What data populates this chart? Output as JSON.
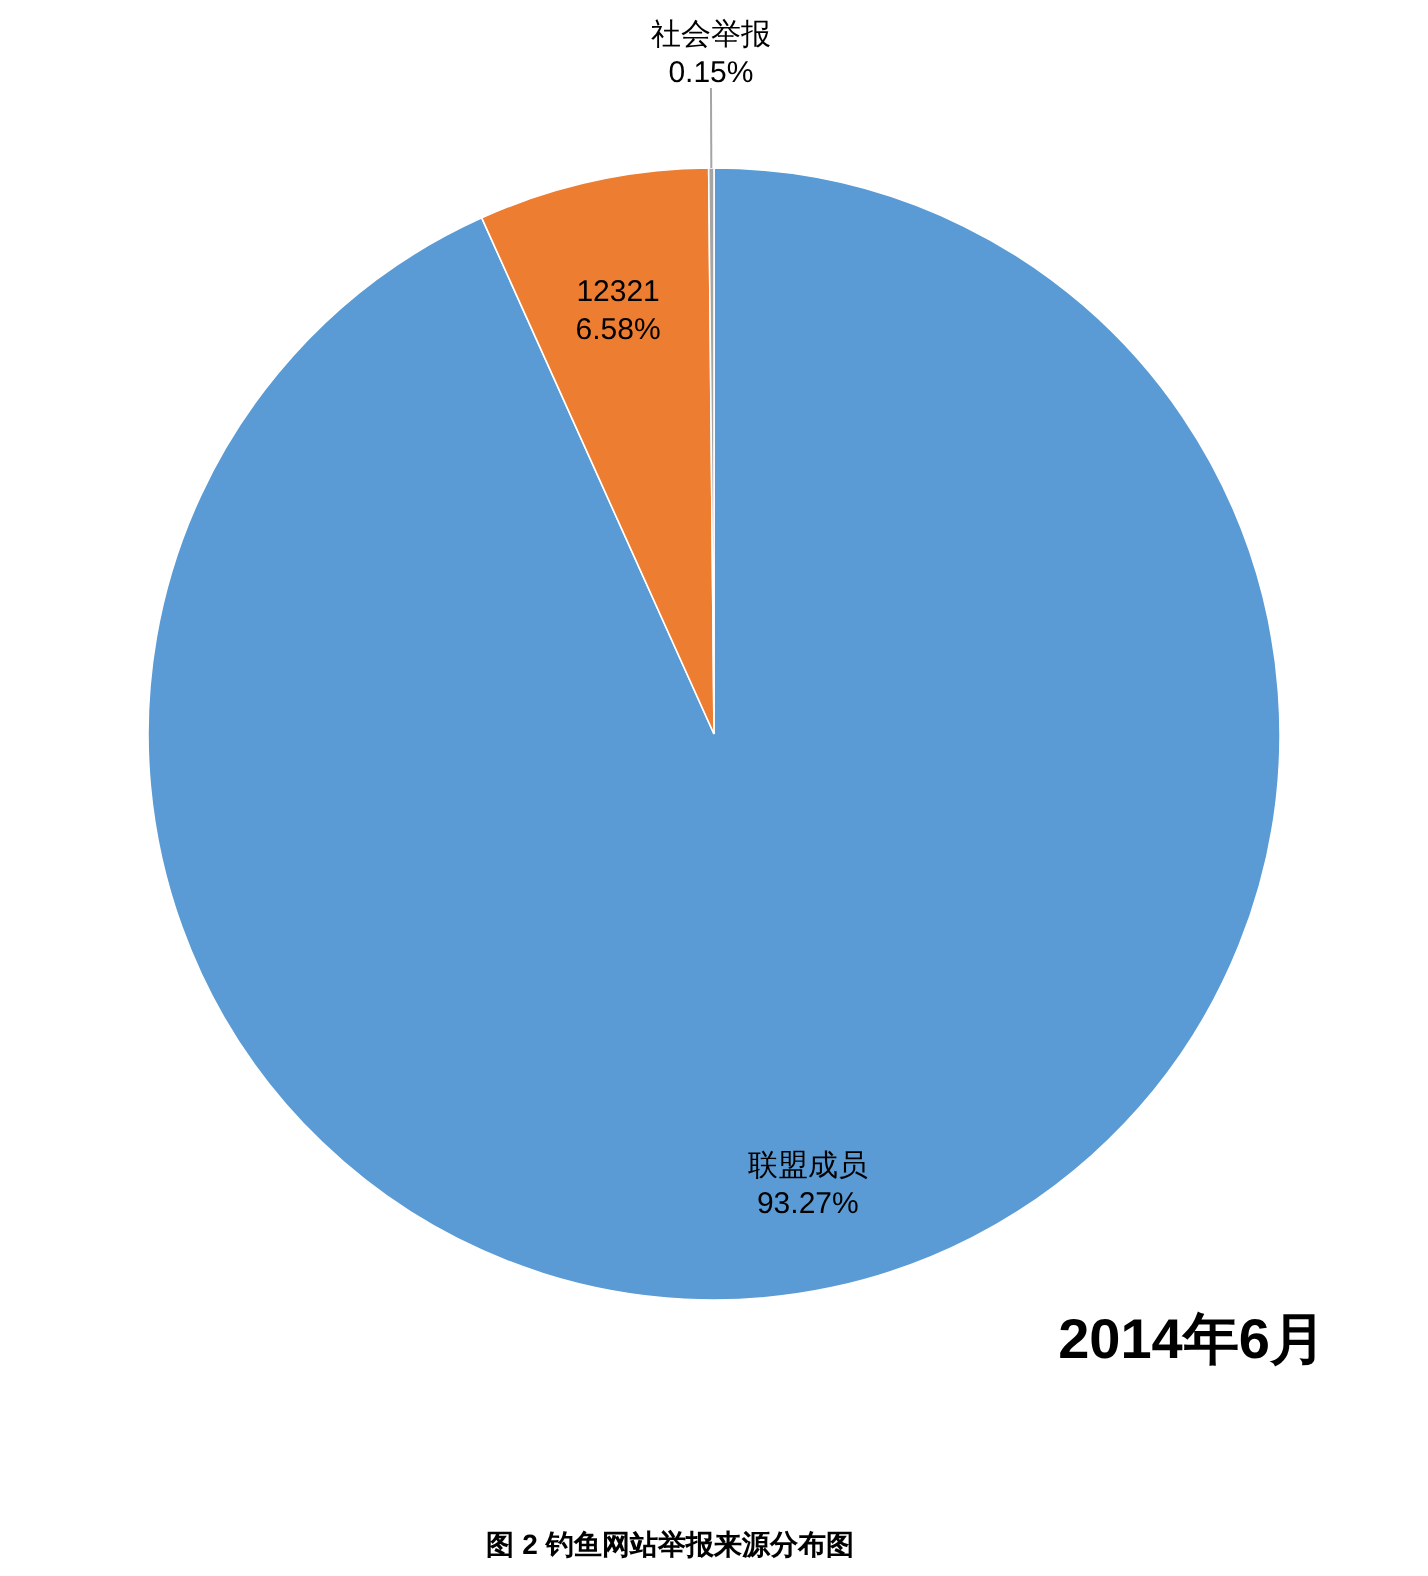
{
  "chart_data": {
    "type": "pie",
    "title": "图 2 钓鱼网站举报来源分布图",
    "categories": [
      "联盟成员",
      "12321",
      "社会举报"
    ],
    "values": [
      93.27,
      6.58,
      0.15
    ],
    "colors": [
      "#5b9bd5",
      "#ed7d31",
      "#a5a5a5"
    ],
    "value_labels": [
      "93.27%",
      "6.58%",
      "0.15%"
    ],
    "annotations": [
      "2014年6月"
    ]
  }
}
